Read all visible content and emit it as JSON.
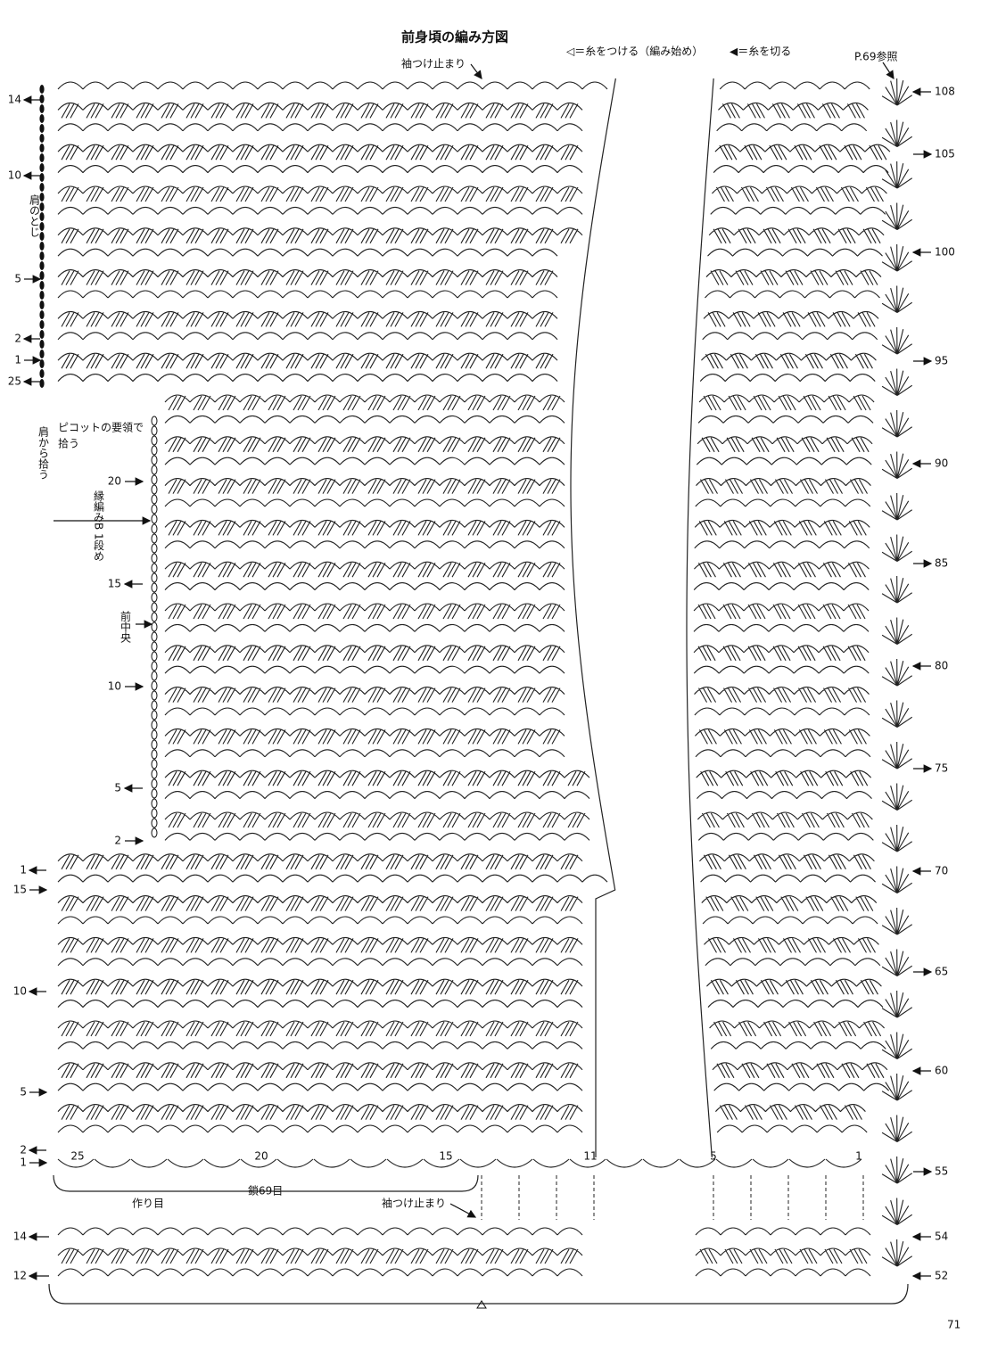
{
  "title": "前身頃の編み方図",
  "legend": {
    "attach": "◁＝糸をつける（編み始め）",
    "cut": "◀＝糸を切る"
  },
  "notes": {
    "sleeve_top": "袖つけ止まり",
    "ref": "P.69参照",
    "shoulder_seam": "肩のとじ",
    "picot": [
      "ピコットの要領で",
      "拾う"
    ],
    "from_shoulder": "肩から拾う",
    "edging": "縁編みB 1段め",
    "center_front": "前中央",
    "foundation": "作り目",
    "chain": "鎖69目",
    "sleeve_bottom": "袖つけ止まり",
    "page": 71
  },
  "right_rows": [
    108,
    105,
    100,
    95,
    90,
    85,
    80,
    75,
    70,
    65,
    60,
    55,
    54,
    52
  ],
  "left_upper_rows": [
    14,
    10,
    5,
    2,
    1,
    25
  ],
  "left_middle_rows": [
    20,
    15,
    10,
    5,
    2
  ],
  "left_lower_rows": [
    1,
    15,
    10,
    5,
    2,
    1
  ],
  "chain_counts": [
    25,
    20,
    15,
    11,
    5,
    1
  ],
  "band_rows": [
    14,
    12
  ]
}
